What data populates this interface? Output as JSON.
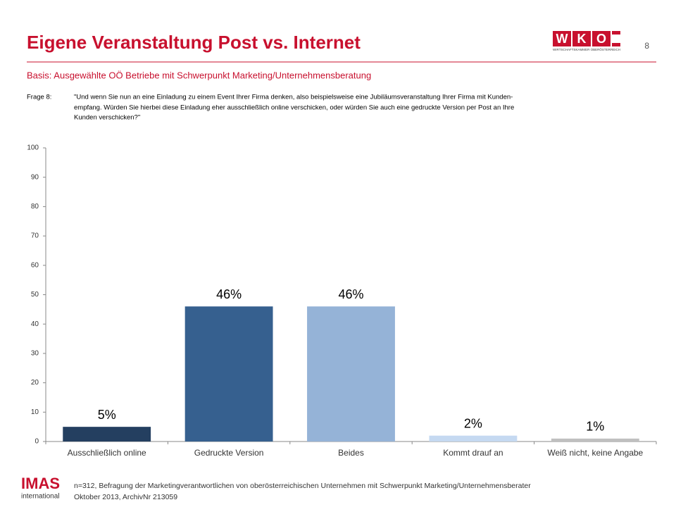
{
  "slide": {
    "page_number": "8",
    "logo": {
      "letters": [
        "W",
        "K",
        "O"
      ],
      "caption": "WIRTSCHAFTSKAMMER OBERÖSTERREICH"
    },
    "basis": "Basis: Ausgewählte OÖ Betriebe mit Schwerpunkt Marketing/Unternehmensberatung",
    "question_label": "Frage 8:",
    "question_lines": [
      "\"Und wenn Sie nun an eine Einladung zu einem Event Ihrer Firma denken, also beispielsweise eine Jubiläumsveranstaltung Ihrer Firma mit Kunden-",
      "empfang. Würden Sie hierbei diese Einladung eher ausschließlich online verschicken, oder würden Sie auch eine gedruckte Version per Post an Ihre",
      "Kunden verschicken?\""
    ],
    "footer_logo": {
      "name": "IMAS",
      "sub": "international"
    },
    "footer_lines": [
      "n=312, Befragung der Marketingverantwortlichen von oberösterreichischen Unternehmen mit Schwerpunkt Marketing/Unternehmensberater",
      "Oktober 2013, ArchivNr 213059"
    ]
  },
  "chart_data": {
    "type": "bar",
    "title": "Eigene Veranstaltung Post vs. Internet",
    "categories": [
      "Ausschließlich online",
      "Gedruckte Version",
      "Beides",
      "Kommt drauf an",
      "Weiß nicht, keine Angabe"
    ],
    "values": [
      5,
      46,
      46,
      2,
      1
    ],
    "value_labels": [
      "5%",
      "46%",
      "46%",
      "2%",
      "1%"
    ],
    "colors": [
      "#243f60",
      "#36608f",
      "#95b3d7",
      "#c5d9f1",
      "#bfbfbf"
    ],
    "ylim": [
      0,
      100
    ],
    "yticks": [
      0,
      10,
      20,
      30,
      40,
      50,
      60,
      70,
      80,
      90,
      100
    ],
    "grid": false
  }
}
